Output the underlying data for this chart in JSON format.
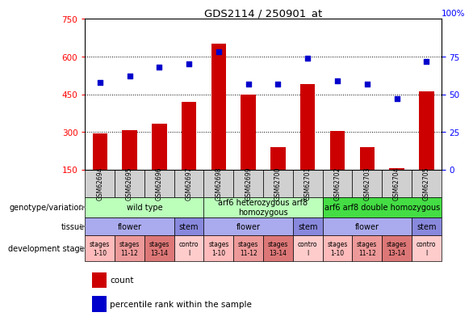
{
  "title": "GDS2114 / 250901_at",
  "samples": [
    "GSM62694",
    "GSM62695",
    "GSM62696",
    "GSM62697",
    "GSM62698",
    "GSM62699",
    "GSM62700",
    "GSM62701",
    "GSM62702",
    "GSM62703",
    "GSM62704",
    "GSM62705"
  ],
  "counts": [
    295,
    308,
    333,
    420,
    650,
    450,
    240,
    490,
    305,
    240,
    155,
    460
  ],
  "percentiles": [
    58,
    62,
    68,
    70,
    78,
    57,
    57,
    74,
    59,
    57,
    47,
    72
  ],
  "ylim_left": [
    150,
    750
  ],
  "ylim_right": [
    0,
    100
  ],
  "yticks_left": [
    150,
    300,
    450,
    600,
    750
  ],
  "yticks_right": [
    0,
    25,
    50,
    75
  ],
  "bar_color": "#cc0000",
  "dot_color": "#0000cc",
  "genotype_groups": [
    {
      "label": "wild type",
      "start": 0,
      "end": 4,
      "color": "#bbffbb"
    },
    {
      "label": "arf6 heterozygous arf8\nhomozygous",
      "start": 4,
      "end": 8,
      "color": "#bbffbb"
    },
    {
      "label": "arf6 arf8 double homozygous",
      "start": 8,
      "end": 12,
      "color": "#44dd44"
    }
  ],
  "tissue_groups": [
    {
      "label": "flower",
      "start": 0,
      "end": 3,
      "color": "#aaaaee"
    },
    {
      "label": "stem",
      "start": 3,
      "end": 4,
      "color": "#8888dd"
    },
    {
      "label": "flower",
      "start": 4,
      "end": 7,
      "color": "#aaaaee"
    },
    {
      "label": "stem",
      "start": 7,
      "end": 8,
      "color": "#8888dd"
    },
    {
      "label": "flower",
      "start": 8,
      "end": 11,
      "color": "#aaaaee"
    },
    {
      "label": "stem",
      "start": 11,
      "end": 12,
      "color": "#8888dd"
    }
  ],
  "stage_groups": [
    {
      "label": "stages\n1-10",
      "start": 0,
      "end": 1,
      "color": "#ffbbbb"
    },
    {
      "label": "stages\n11-12",
      "start": 1,
      "end": 2,
      "color": "#ee9999"
    },
    {
      "label": "stages\n13-14",
      "start": 2,
      "end": 3,
      "color": "#dd7777"
    },
    {
      "label": "contro\nl",
      "start": 3,
      "end": 4,
      "color": "#ffcccc"
    },
    {
      "label": "stages\n1-10",
      "start": 4,
      "end": 5,
      "color": "#ffbbbb"
    },
    {
      "label": "stages\n11-12",
      "start": 5,
      "end": 6,
      "color": "#ee9999"
    },
    {
      "label": "stages\n13-14",
      "start": 6,
      "end": 7,
      "color": "#dd7777"
    },
    {
      "label": "contro\nl",
      "start": 7,
      "end": 8,
      "color": "#ffcccc"
    },
    {
      "label": "stages\n1-10",
      "start": 8,
      "end": 9,
      "color": "#ffbbbb"
    },
    {
      "label": "stages\n11-12",
      "start": 9,
      "end": 10,
      "color": "#ee9999"
    },
    {
      "label": "stages\n13-14",
      "start": 10,
      "end": 11,
      "color": "#dd7777"
    },
    {
      "label": "contro\nl",
      "start": 11,
      "end": 12,
      "color": "#ffcccc"
    }
  ],
  "row_labels": [
    "genotype/variation",
    "tissue",
    "development stage"
  ],
  "legend_items": [
    {
      "label": "count",
      "color": "#cc0000"
    },
    {
      "label": "percentile rank within the sample",
      "color": "#0000cc"
    }
  ]
}
